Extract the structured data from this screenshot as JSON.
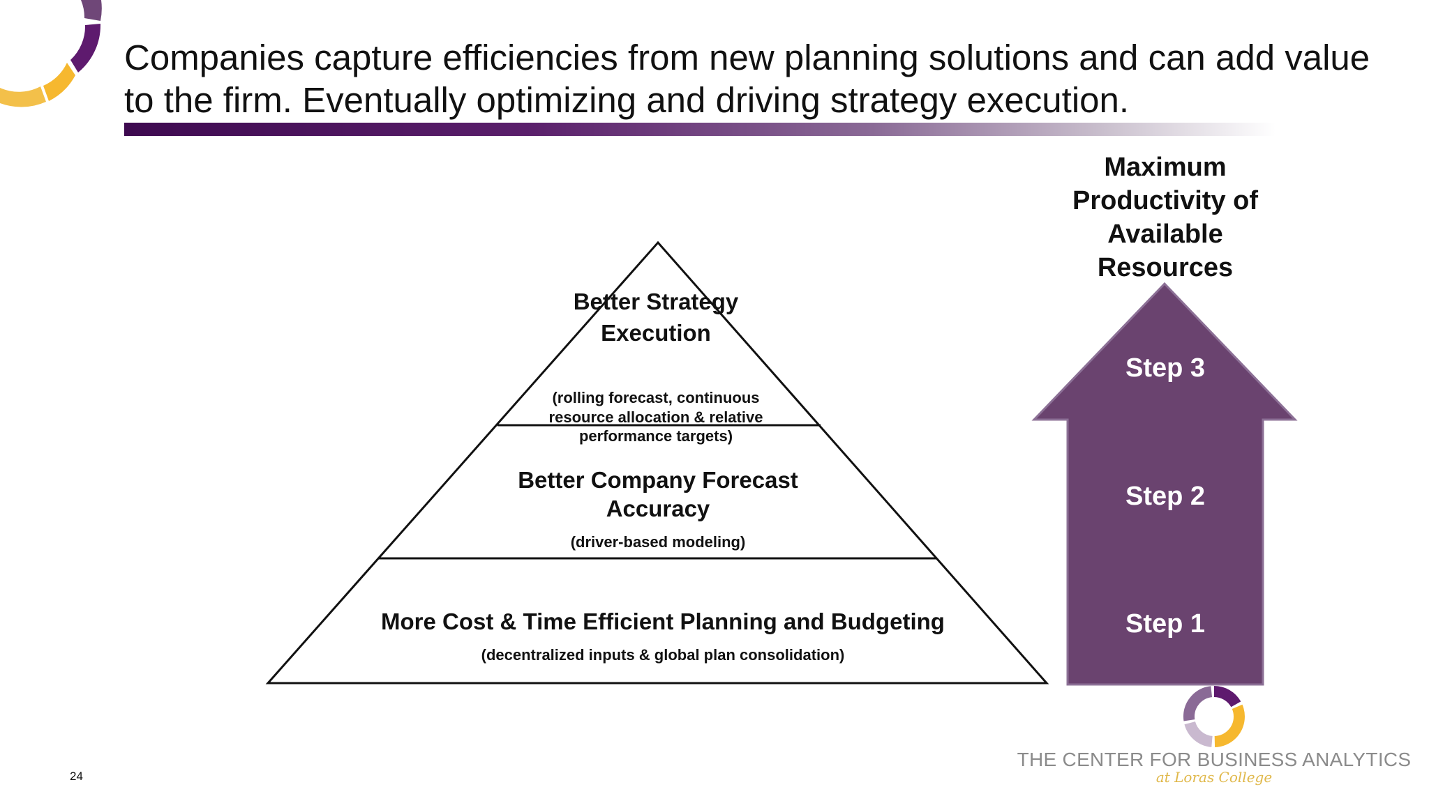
{
  "slide": {
    "title": "Companies capture efficiencies from new planning solutions and can add value to the firm.  Eventually optimizing and driving strategy execution.",
    "page_number": "24"
  },
  "pyramid": {
    "tiers": [
      {
        "title": "More Cost & Time Efficient Planning and Budgeting",
        "subtitle": "(decentralized inputs & global plan consolidation)"
      },
      {
        "title": "Better Company Forecast Accuracy",
        "subtitle": "(driver-based modeling)"
      },
      {
        "title": "Better Strategy Execution",
        "subtitle": "(rolling forecast, continuous resource allocation & relative performance targets)"
      }
    ]
  },
  "arrow": {
    "label": "Maximum Productivity of Available Resources",
    "color": "#6a436f",
    "steps": [
      "Step 3",
      "Step 2",
      "Step 1"
    ]
  },
  "logo": {
    "name": "THE CENTER FOR BUSINESS ANALYTICS",
    "subtitle": "at Loras College"
  },
  "colors": {
    "purple": "#5e1a6e",
    "gold": "#f6b82f",
    "title_rule_start": "#3e0a50"
  }
}
